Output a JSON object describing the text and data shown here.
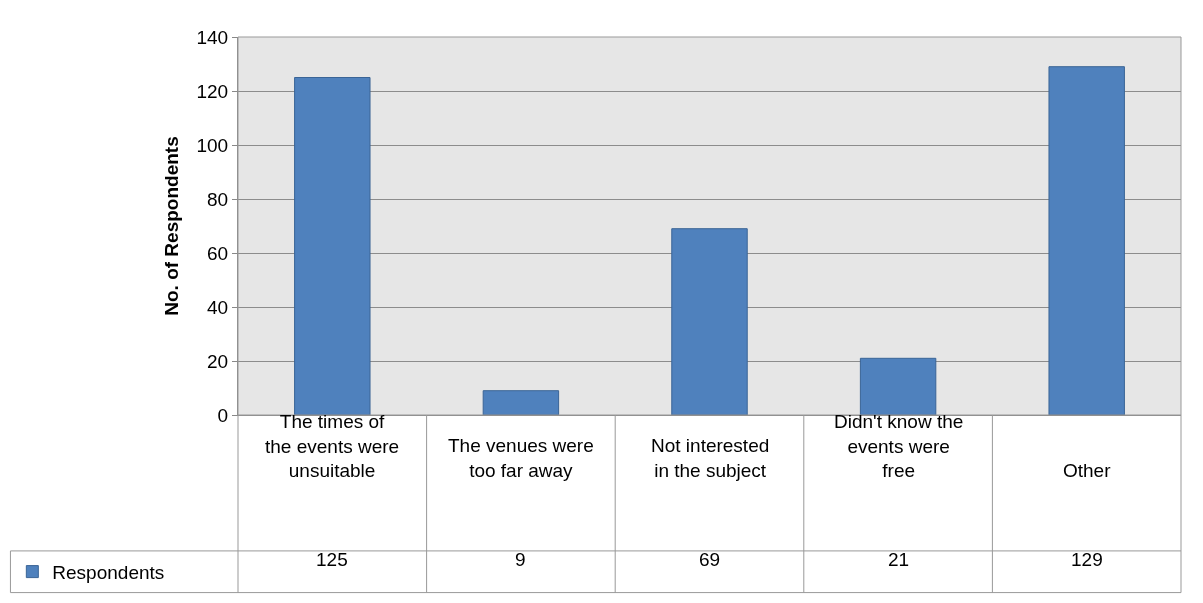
{
  "chart_data": {
    "type": "bar",
    "ylabel": "No. of Respondents",
    "categories": [
      "The times of the events were unsuitable",
      "The venues were too far away",
      "Not interested in the subject",
      "Didn't know the events were free",
      "Other"
    ],
    "series": [
      {
        "name": "Respondents",
        "color": "#4f81bd",
        "values": [
          125,
          9,
          69,
          21,
          129
        ]
      }
    ],
    "ylim": [
      0,
      140
    ],
    "yticks": [
      0,
      20,
      40,
      60,
      80,
      100,
      120,
      140
    ],
    "grid": "y",
    "legend": "bottom left",
    "data_labels": true
  }
}
